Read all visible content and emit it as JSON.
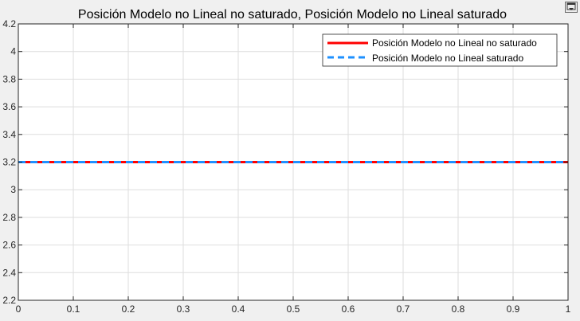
{
  "window": {
    "restore_button_icon": "restore-window-icon"
  },
  "chart_data": {
    "type": "line",
    "title": "Posición Modelo no Lineal no saturado, Posición Modelo no Lineal saturado",
    "xlabel": "",
    "ylabel": "",
    "xlim": [
      0,
      1
    ],
    "ylim": [
      2.2,
      4.2
    ],
    "xticks": [
      0,
      0.1,
      0.2,
      0.3,
      0.4,
      0.5,
      0.6,
      0.7,
      0.8,
      0.9,
      1
    ],
    "xtick_labels": [
      "0",
      "0.1",
      "0.2",
      "0.3",
      "0.4",
      "0.5",
      "0.6",
      "0.7",
      "0.8",
      "0.9",
      "1"
    ],
    "yticks": [
      2.2,
      2.4,
      2.6,
      2.8,
      3,
      3.2,
      3.4,
      3.6,
      3.8,
      4,
      4.2
    ],
    "ytick_labels": [
      "2.2",
      "2.4",
      "2.6",
      "2.8",
      "3",
      "3.2",
      "3.4",
      "3.6",
      "3.8",
      "4",
      "4.2"
    ],
    "grid": true,
    "legend_position": "top-right",
    "series": [
      {
        "name": "Posición Modelo no Lineal no saturado",
        "color": "#ff0000",
        "line_style": "solid",
        "x": [
          0,
          1
        ],
        "y": [
          3.2,
          3.2
        ]
      },
      {
        "name": "Posición Modelo no Lineal saturado",
        "color": "#1e90ff",
        "line_style": "dashed",
        "x": [
          0,
          1
        ],
        "y": [
          3.2,
          3.2
        ]
      }
    ]
  }
}
